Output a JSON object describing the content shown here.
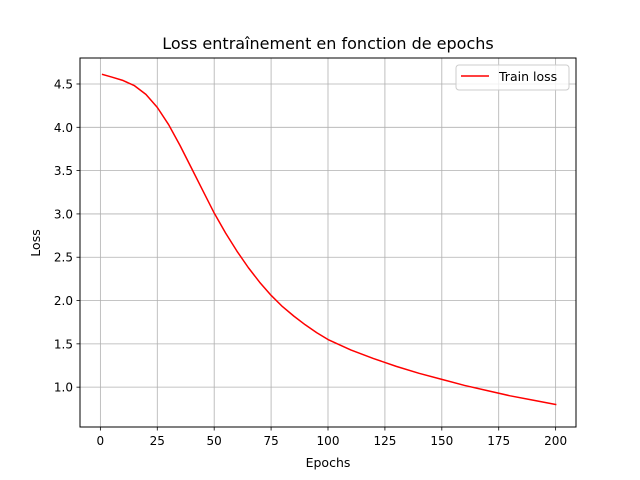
{
  "chart_data": {
    "type": "line",
    "title": "Loss entraînement en fonction de epochs",
    "xlabel": "Epochs",
    "ylabel": "Loss",
    "xlim": [
      -8.95,
      208.95
    ],
    "ylim": [
      0.54,
      4.8
    ],
    "xticks": [
      0,
      25,
      50,
      75,
      100,
      125,
      150,
      175,
      200
    ],
    "yticks": [
      1.0,
      1.5,
      2.0,
      2.5,
      3.0,
      3.5,
      4.0,
      4.5
    ],
    "xtick_labels": [
      "0",
      "25",
      "50",
      "75",
      "100",
      "125",
      "150",
      "175",
      "200"
    ],
    "ytick_labels": [
      "1.0",
      "1.5",
      "2.0",
      "2.5",
      "3.0",
      "3.5",
      "4.0",
      "4.5"
    ],
    "grid": true,
    "legend_position": "top-right",
    "series": [
      {
        "name": "Train loss",
        "color": "#ff0000",
        "x": [
          1,
          5,
          10,
          15,
          20,
          25,
          30,
          35,
          40,
          45,
          50,
          55,
          60,
          65,
          70,
          75,
          80,
          85,
          90,
          95,
          100,
          110,
          120,
          130,
          140,
          150,
          160,
          170,
          180,
          190,
          200
        ],
        "y": [
          4.61,
          4.58,
          4.54,
          4.48,
          4.38,
          4.23,
          4.03,
          3.79,
          3.53,
          3.27,
          3.01,
          2.78,
          2.57,
          2.38,
          2.21,
          2.06,
          1.93,
          1.82,
          1.72,
          1.63,
          1.55,
          1.43,
          1.33,
          1.24,
          1.16,
          1.09,
          1.02,
          0.96,
          0.9,
          0.85,
          0.8
        ]
      }
    ]
  }
}
